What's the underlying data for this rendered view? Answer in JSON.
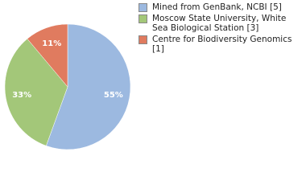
{
  "chart_data": {
    "type": "pie",
    "categories": [
      "Mined from GenBank, NCBI [5]",
      "Moscow State University, White Sea Biological Station [3]",
      "Centre for Biodiversity Genomics [1]"
    ],
    "values": [
      55,
      33,
      11
    ],
    "value_labels": [
      "55%",
      "33%",
      "11%"
    ],
    "colors": [
      "#9cb9e0",
      "#a3c779",
      "#e07b5f"
    ]
  }
}
